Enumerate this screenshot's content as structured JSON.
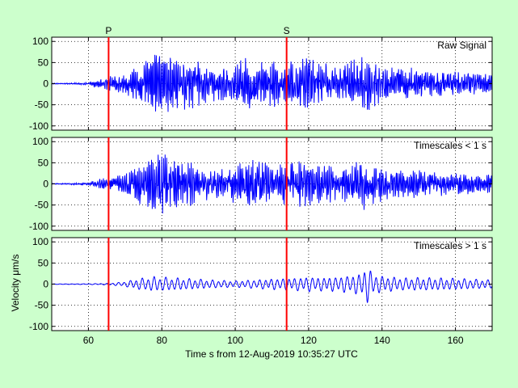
{
  "colors": {
    "figure_background": "#ccffcc",
    "axes_background": "#ffffff",
    "signal": "#0000ff",
    "phase_marker": "#ff0000",
    "grid": "#000000"
  },
  "chart_data": {
    "type": "line",
    "xlabel": "Time s from 12-Aug-2019 10:35:27 UTC",
    "ylabel": "Velocity μm/s",
    "xlim": [
      50,
      170
    ],
    "xticks": [
      60,
      80,
      100,
      120,
      140,
      160
    ],
    "grid": true,
    "phase_markers": [
      {
        "label": "P",
        "x": 65.5
      },
      {
        "label": "S",
        "x": 114.0
      }
    ],
    "panels": [
      {
        "label": "Raw Signal",
        "ylim": [
          -110,
          110
        ],
        "yticks": [
          100,
          50,
          0,
          -50,
          -100
        ],
        "envelope_x": [
          50,
          55,
          60,
          63,
          66,
          70,
          73,
          76,
          80,
          84,
          88,
          92,
          96,
          100,
          104,
          108,
          112,
          116,
          120,
          124,
          128,
          132,
          136,
          138,
          142,
          146,
          150,
          155,
          160,
          165,
          170
        ],
        "envelope_amp": [
          1,
          1.5,
          3,
          10,
          15,
          20,
          35,
          55,
          65,
          60,
          50,
          40,
          35,
          45,
          55,
          50,
          45,
          50,
          55,
          45,
          40,
          50,
          70,
          45,
          40,
          35,
          32,
          28,
          25,
          22,
          20
        ]
      },
      {
        "label": "Timescales < 1 s",
        "ylim": [
          -110,
          110
        ],
        "yticks": [
          100,
          50,
          0,
          -50,
          -100
        ],
        "envelope_x": [
          50,
          55,
          60,
          63,
          66,
          70,
          73,
          76,
          80,
          84,
          88,
          92,
          96,
          100,
          104,
          108,
          112,
          116,
          120,
          124,
          128,
          132,
          136,
          138,
          142,
          146,
          150,
          155,
          160,
          165,
          170
        ],
        "envelope_amp": [
          1,
          1.5,
          3,
          10,
          15,
          20,
          35,
          55,
          65,
          55,
          45,
          35,
          30,
          40,
          50,
          45,
          40,
          45,
          50,
          40,
          38,
          45,
          55,
          40,
          35,
          30,
          28,
          25,
          22,
          20,
          18
        ]
      },
      {
        "label": "Timescales > 1 s",
        "ylim": [
          -110,
          110
        ],
        "yticks": [
          100,
          50,
          0,
          -50,
          -100
        ],
        "envelope_x": [
          50,
          60,
          66,
          70,
          74,
          78,
          82,
          86,
          90,
          96,
          100,
          104,
          108,
          112,
          116,
          120,
          124,
          128,
          132,
          134,
          136,
          138,
          142,
          146,
          150,
          155,
          160,
          165,
          170
        ],
        "envelope_amp": [
          0.5,
          1,
          2,
          6,
          14,
          18,
          16,
          14,
          12,
          9,
          8,
          10,
          12,
          14,
          15,
          18,
          16,
          18,
          22,
          25,
          45,
          22,
          18,
          15,
          16,
          15,
          14,
          12,
          10
        ]
      }
    ]
  }
}
